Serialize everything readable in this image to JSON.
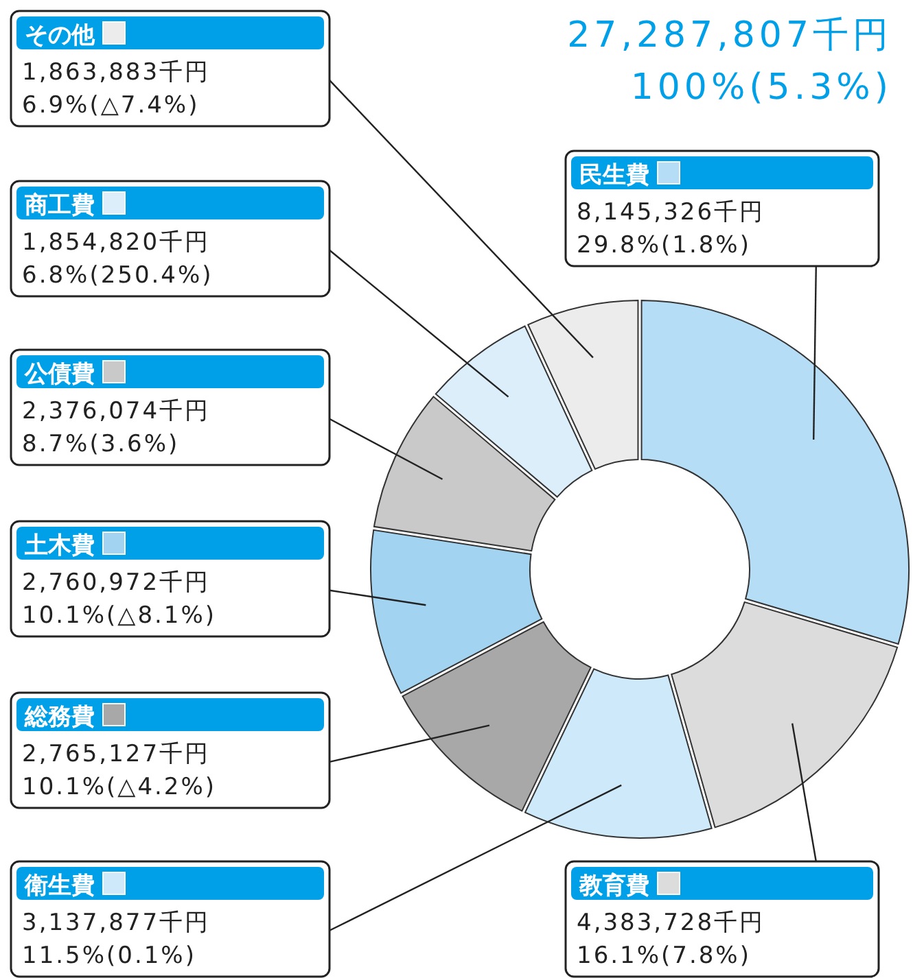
{
  "chart_data": {
    "type": "donut",
    "title": "27,287,807千円",
    "subtitle": "100%(5.3%)",
    "legend": "left",
    "categories": [
      "民生費",
      "教育費",
      "衛生費",
      "総務費",
      "土木費",
      "公債費",
      "商工費",
      "その他"
    ],
    "values": [
      8145326,
      4383728,
      3137877,
      2765127,
      2760972,
      2376074,
      1854820,
      1863883
    ],
    "colors": [
      "#b5ddf5",
      "#dcdcdc",
      "#cde9fa",
      "#a8a8a8",
      "#a2d4f2",
      "#c9c9c9",
      "#ddeefb",
      "#ececec"
    ],
    "value_labels": [
      "8,145,326千円\n29.8%(1.8%)",
      "4,383,728千円\n16.1%(7.8%)",
      "3,137,877千円\n11.5%(0.1%)",
      "2,765,127千円\n10.1%(△4.2%)",
      "2,760,972千円\n10.1%(△8.1%)",
      "2,376,074千円\n8.7%(3.6%)",
      "1,854,820千円\n6.8%(250.4%)",
      "1,863,883千円\n6.9%(△7.4%)"
    ]
  }
}
